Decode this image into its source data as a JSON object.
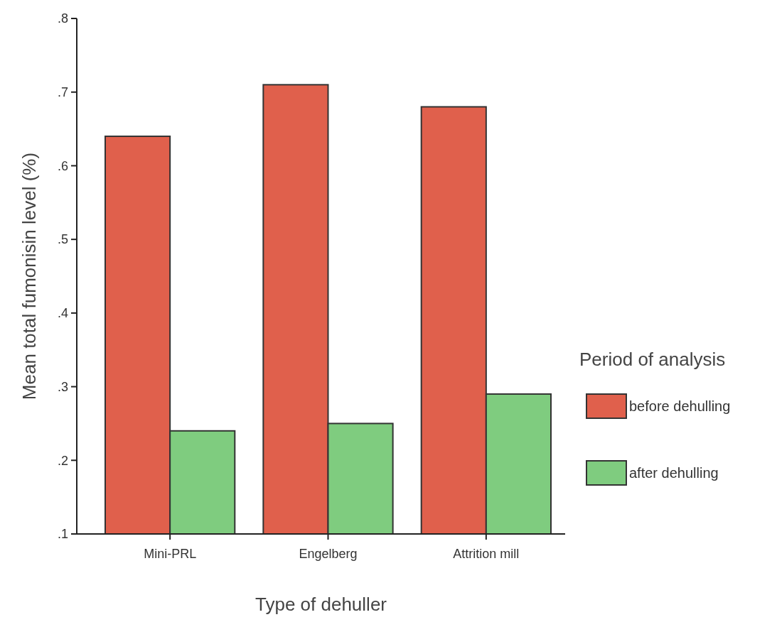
{
  "chart_data": {
    "type": "bar",
    "xlabel": "Type of dehuller",
    "ylabel": "Mean total fumonisin level (%)",
    "legend_title": "Period of analysis",
    "categories": [
      "Mini-PRL",
      "Engelberg",
      "Attrition mill"
    ],
    "series": [
      {
        "name": "before dehulling",
        "color": "#e0604c",
        "values": [
          0.64,
          0.71,
          0.68
        ]
      },
      {
        "name": "after dehulling",
        "color": "#7fcc7f",
        "values": [
          0.24,
          0.25,
          0.29
        ]
      }
    ],
    "ylim": [
      0.1,
      0.8
    ],
    "yticks": [
      {
        "value": 0.1,
        "label": ".1"
      },
      {
        "value": 0.2,
        "label": ".2"
      },
      {
        "value": 0.3,
        "label": ".3"
      },
      {
        "value": 0.4,
        "label": ".4"
      },
      {
        "value": 0.5,
        "label": ".5"
      },
      {
        "value": 0.6,
        "label": ".6"
      },
      {
        "value": 0.7,
        "label": ".7"
      },
      {
        "value": 0.8,
        "label": ".8"
      }
    ],
    "grid": false,
    "legend": "right"
  }
}
